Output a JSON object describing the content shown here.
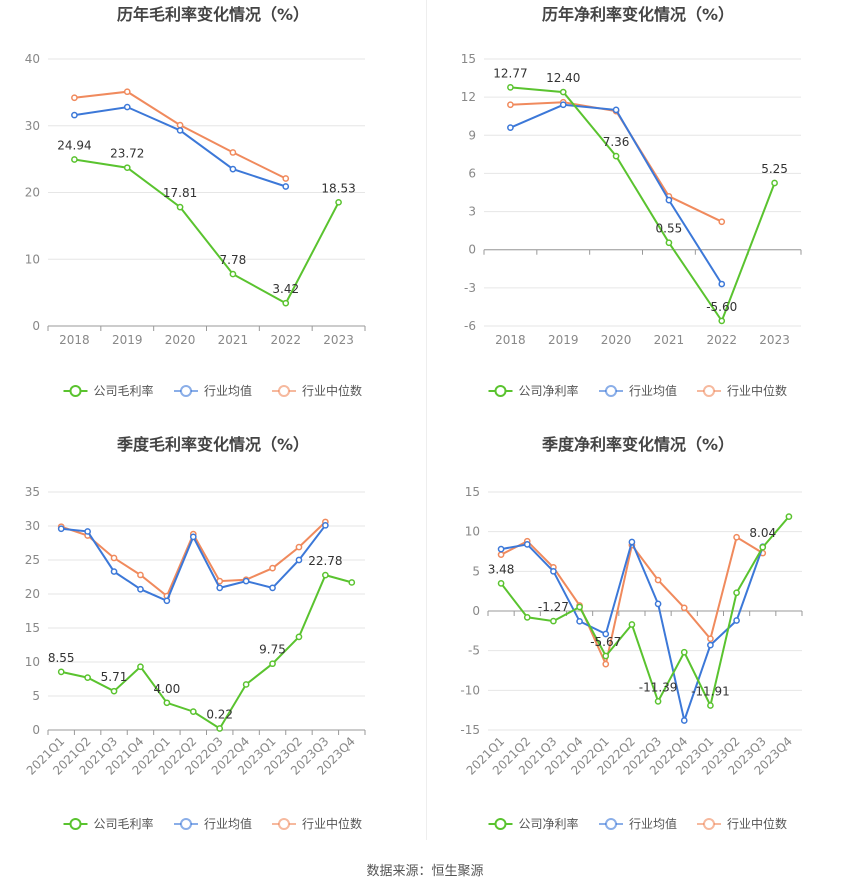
{
  "source": "数据来源：恒生聚源",
  "colors": {
    "company": "#5ac32f",
    "avg": "#3c78d8",
    "median": "#f08a5d",
    "grid": "#e6e6e6",
    "axis": "#999999",
    "text": "#888888",
    "title": "#444444"
  },
  "chart_data": [
    {
      "id": "annual_gross",
      "type": "line",
      "title": "历年毛利率变化情况（%）",
      "categories": [
        "2018",
        "2019",
        "2020",
        "2021",
        "2022",
        "2023"
      ],
      "ylim": [
        0,
        40
      ],
      "yticks": [
        0,
        10,
        20,
        30,
        40
      ],
      "yticks_labels": [
        "0",
        "10",
        "20",
        "30",
        "40"
      ],
      "series": [
        {
          "name": "公司毛利率",
          "key": "company",
          "values": [
            24.94,
            23.72,
            17.81,
            7.78,
            3.42,
            18.53
          ],
          "labels": [
            "24.94",
            "23.72",
            "17.81",
            "7.78",
            "3.42",
            "18.53"
          ]
        },
        {
          "name": "行业均值",
          "key": "avg",
          "values": [
            31.6,
            32.8,
            29.3,
            23.5,
            20.9,
            null
          ]
        },
        {
          "name": "行业中位数",
          "key": "median",
          "values": [
            34.2,
            35.1,
            30.1,
            26.0,
            22.1,
            null
          ]
        }
      ]
    },
    {
      "id": "annual_net",
      "type": "line",
      "title": "历年净利率变化情况（%）",
      "categories": [
        "2018",
        "2019",
        "2020",
        "2021",
        "2022",
        "2023"
      ],
      "ylim": [
        -6,
        15
      ],
      "yticks": [
        -6,
        -3,
        0,
        3,
        6,
        9,
        12,
        15
      ],
      "yticks_labels": [
        "-6",
        "-3",
        "0",
        "3",
        "6",
        "9",
        "12",
        "15"
      ],
      "series": [
        {
          "name": "公司净利率",
          "key": "company",
          "values": [
            12.77,
            12.4,
            7.36,
            0.55,
            -5.6,
            5.25
          ],
          "labels": [
            "12.77",
            "12.40",
            "7.36",
            "0.55",
            "-5.60",
            "5.25"
          ]
        },
        {
          "name": "行业均值",
          "key": "avg",
          "values": [
            9.6,
            11.4,
            11.0,
            3.9,
            -2.7,
            null
          ]
        },
        {
          "name": "行业中位数",
          "key": "median",
          "values": [
            11.4,
            11.6,
            10.9,
            4.2,
            2.2,
            null
          ]
        }
      ]
    },
    {
      "id": "quarter_gross",
      "type": "line",
      "title": "季度毛利率变化情况（%）",
      "categories": [
        "2021Q1",
        "2021Q2",
        "2021Q3",
        "2021Q4",
        "2022Q1",
        "2022Q2",
        "2022Q3",
        "2022Q4",
        "2023Q1",
        "2023Q2",
        "2023Q3",
        "2023Q4"
      ],
      "ylim": [
        0,
        35
      ],
      "yticks": [
        0,
        5,
        10,
        15,
        20,
        25,
        30,
        35
      ],
      "yticks_labels": [
        "0",
        "5",
        "10",
        "15",
        "20",
        "25",
        "30",
        "35"
      ],
      "series": [
        {
          "name": "公司毛利率",
          "key": "company",
          "values": [
            8.55,
            7.7,
            5.71,
            9.3,
            4.0,
            2.7,
            0.22,
            6.7,
            9.75,
            13.7,
            22.78,
            21.7
          ],
          "labels": [
            "8.55",
            "",
            "5.71",
            "",
            "4.00",
            "",
            "0.22",
            "",
            "9.75",
            "",
            "22.78",
            ""
          ]
        },
        {
          "name": "行业均值",
          "key": "avg",
          "values": [
            29.6,
            29.2,
            23.3,
            20.7,
            19.0,
            28.4,
            20.9,
            21.9,
            20.9,
            25.0,
            30.1,
            null
          ]
        },
        {
          "name": "行业中位数",
          "key": "median",
          "values": [
            29.9,
            28.6,
            25.3,
            22.8,
            19.7,
            28.8,
            21.9,
            22.1,
            23.8,
            26.9,
            30.6,
            null
          ]
        }
      ]
    },
    {
      "id": "quarter_net",
      "type": "line",
      "title": "季度净利率变化情况（%）",
      "categories": [
        "2021Q1",
        "2021Q2",
        "2021Q3",
        "2021Q4",
        "2022Q1",
        "2022Q2",
        "2022Q3",
        "2022Q4",
        "2023Q1",
        "2023Q2",
        "2023Q3",
        "2023Q4"
      ],
      "ylim": [
        -15,
        15
      ],
      "yticks": [
        -15,
        -10,
        -5,
        0,
        5,
        10,
        15
      ],
      "yticks_labels": [
        "-15",
        "-10",
        "-5",
        "0",
        "5",
        "10",
        "15"
      ],
      "series": [
        {
          "name": "公司净利率",
          "key": "company",
          "values": [
            3.48,
            -0.8,
            -1.27,
            0.5,
            -5.67,
            -1.7,
            -11.39,
            -5.2,
            -11.91,
            2.3,
            8.04,
            11.9
          ],
          "labels": [
            "3.48",
            "",
            "-1.27",
            "",
            "-5.67",
            "",
            "-11.39",
            "",
            "-11.91",
            "",
            "8.04",
            ""
          ]
        },
        {
          "name": "行业均值",
          "key": "avg",
          "values": [
            7.8,
            8.4,
            5.0,
            -1.3,
            -2.9,
            8.7,
            0.9,
            -13.8,
            -4.3,
            -1.2,
            8.1,
            null
          ]
        },
        {
          "name": "行业中位数",
          "key": "median",
          "values": [
            7.1,
            8.8,
            5.5,
            0.7,
            -6.7,
            8.3,
            3.9,
            0.4,
            -3.5,
            9.3,
            7.3,
            null
          ]
        }
      ]
    }
  ]
}
